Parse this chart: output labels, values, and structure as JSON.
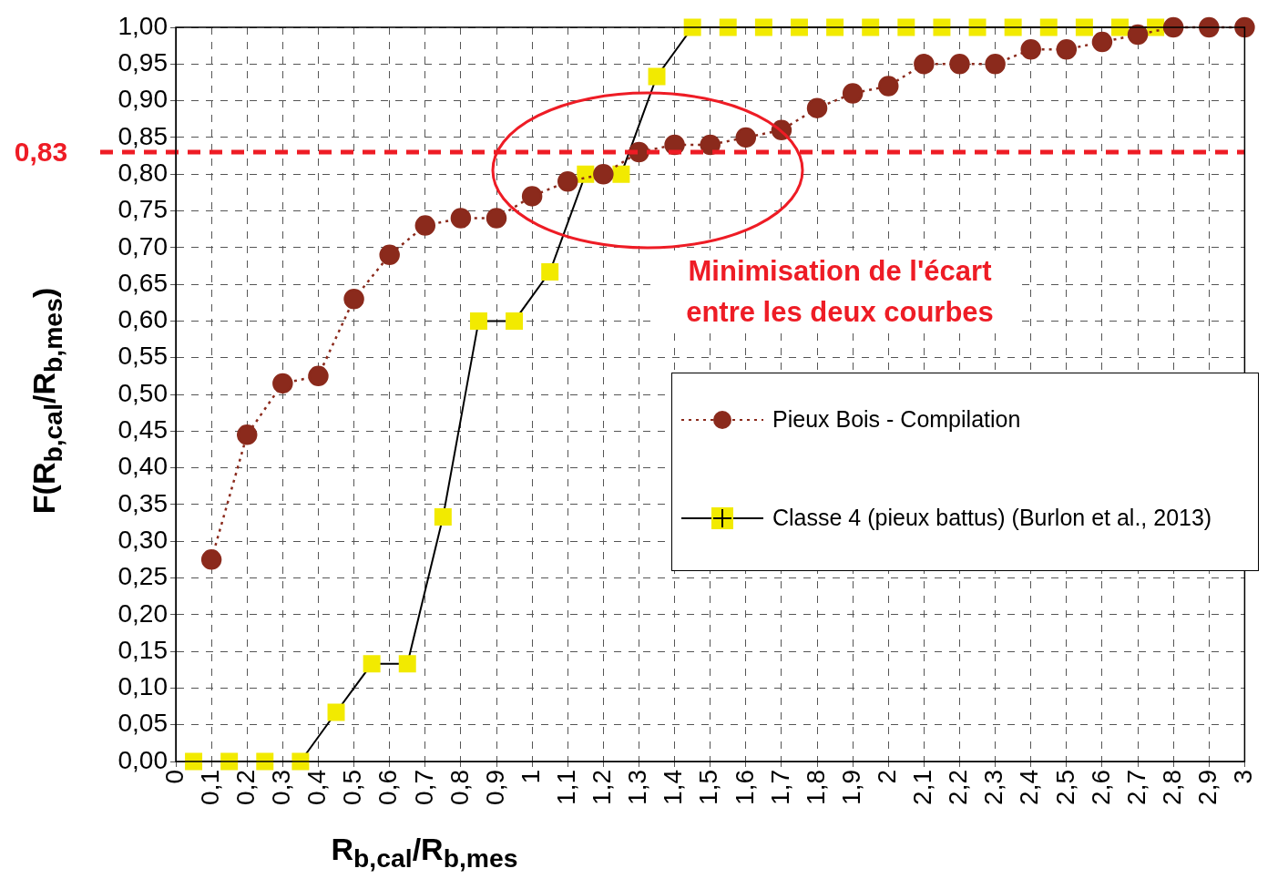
{
  "chart_data": {
    "type": "line",
    "xlabel": "R$_{b,cal}$/R$_{b,mes}$",
    "ylabel": "F(R$_{b,cal}$/R$_{b,mes}$)",
    "series": [
      {
        "name": "Pieux Bois - Compilation",
        "color": "#8b2a1c",
        "marker": "circle",
        "line_style": "dotted",
        "x": [
          0.1,
          0.2,
          0.3,
          0.4,
          0.5,
          0.6,
          0.7,
          0.8,
          0.9,
          1.0,
          1.1,
          1.2,
          1.3,
          1.4,
          1.5,
          1.6,
          1.7,
          1.8,
          1.9,
          2.0,
          2.1,
          2.2,
          2.3,
          2.4,
          2.5,
          2.6,
          2.7,
          2.8,
          2.9,
          3.0
        ],
        "values": [
          0.275,
          0.445,
          0.515,
          0.525,
          0.63,
          0.69,
          0.73,
          0.74,
          0.74,
          0.77,
          0.79,
          0.8,
          0.83,
          0.84,
          0.84,
          0.85,
          0.86,
          0.89,
          0.91,
          0.92,
          0.95,
          0.95,
          0.95,
          0.97,
          0.97,
          0.98,
          0.99,
          1.0,
          1.0,
          1.0
        ]
      },
      {
        "name": "Classe 4 (pieux battus) (Burlon et al., 2013)",
        "color": "#f2ea00",
        "marker": "square",
        "line_style": "solid",
        "x": [
          0.05,
          0.15,
          0.25,
          0.35,
          0.45,
          0.55,
          0.65,
          0.75,
          0.85,
          0.95,
          1.05,
          1.15,
          1.25,
          1.35,
          1.45,
          1.55,
          1.65,
          1.75,
          1.85,
          1.95,
          2.05,
          2.15,
          2.25,
          2.35,
          2.45,
          2.55,
          2.65,
          2.75
        ],
        "values": [
          0,
          0,
          0,
          0,
          0.067,
          0.133,
          0.133,
          0.333,
          0.6,
          0.6,
          0.667,
          0.8,
          0.8,
          0.933,
          1,
          1,
          1,
          1,
          1,
          1,
          1,
          1,
          1,
          1,
          1,
          1,
          1,
          1
        ]
      }
    ],
    "xlim": [
      0,
      3
    ],
    "xticks": [
      0,
      {
        "value": 0.1,
        "label": "0,1"
      },
      {
        "value": 0.2,
        "label": "0,2"
      },
      {
        "value": 0.3,
        "label": "0,3"
      },
      {
        "value": 0.4,
        "label": "0,4"
      },
      {
        "value": 0.5,
        "label": "0,5"
      },
      {
        "value": 0.6,
        "label": "0,6"
      },
      {
        "value": 0.7,
        "label": "0,7"
      },
      {
        "value": 0.8,
        "label": "0,8"
      },
      {
        "value": 0.9,
        "label": "0,9"
      },
      1,
      {
        "value": 1.1,
        "label": "1,1"
      },
      {
        "value": 1.2,
        "label": "1,2"
      },
      {
        "value": 1.3,
        "label": "1,3"
      },
      {
        "value": 1.4,
        "label": "1,4"
      },
      {
        "value": 1.5,
        "label": "1,5"
      },
      {
        "value": 1.6,
        "label": "1,6"
      },
      {
        "value": 1.7,
        "label": "1,7"
      },
      {
        "value": 1.8,
        "label": "1,8"
      },
      {
        "value": 1.9,
        "label": "1,9"
      },
      2,
      {
        "value": 2.1,
        "label": "2,1"
      },
      {
        "value": 2.2,
        "label": "2,2"
      },
      {
        "value": 2.3,
        "label": "2,3"
      },
      {
        "value": 2.4,
        "label": "2,4"
      },
      {
        "value": 2.5,
        "label": "2,5"
      },
      {
        "value": 2.6,
        "label": "2,6"
      },
      {
        "value": 2.7,
        "label": "2,7"
      },
      {
        "value": 2.8,
        "label": "2,8"
      },
      {
        "value": 2.9,
        "label": "2,9"
      },
      3
    ],
    "ylim": [
      0,
      1
    ],
    "yticks": [
      {
        "value": 0,
        "label": "0,00"
      },
      {
        "value": 0.05,
        "label": "0,05"
      },
      {
        "value": 0.1,
        "label": "0,10"
      },
      {
        "value": 0.15,
        "label": "0,15"
      },
      {
        "value": 0.2,
        "label": "0,20"
      },
      {
        "value": 0.25,
        "label": "0,25"
      },
      {
        "value": 0.3,
        "label": "0,30"
      },
      {
        "value": 0.35,
        "label": "0,35"
      },
      {
        "value": 0.4,
        "label": "0,40"
      },
      {
        "value": 0.45,
        "label": "0,45"
      },
      {
        "value": 0.5,
        "label": "0,50"
      },
      {
        "value": 0.55,
        "label": "0,55"
      },
      {
        "value": 0.6,
        "label": "0,60"
      },
      {
        "value": 0.65,
        "label": "0,65"
      },
      {
        "value": 0.7,
        "label": "0,70"
      },
      {
        "value": 0.75,
        "label": "0,75"
      },
      {
        "value": 0.8,
        "label": "0,80"
      },
      {
        "value": 0.85,
        "label": "0,85"
      },
      {
        "value": 0.9,
        "label": "0,90"
      },
      {
        "value": 0.95,
        "label": "0,95"
      },
      {
        "value": 1,
        "label": "1,00"
      }
    ],
    "ref_lines": [
      {
        "axis": "y",
        "value": 0.83,
        "label": "0,83",
        "color": "#ee1c25",
        "line_style": "dashed"
      }
    ],
    "annotations": [
      "Minimisation de l'écart entre les deux courbes"
    ],
    "grid": true,
    "legend": "right"
  }
}
